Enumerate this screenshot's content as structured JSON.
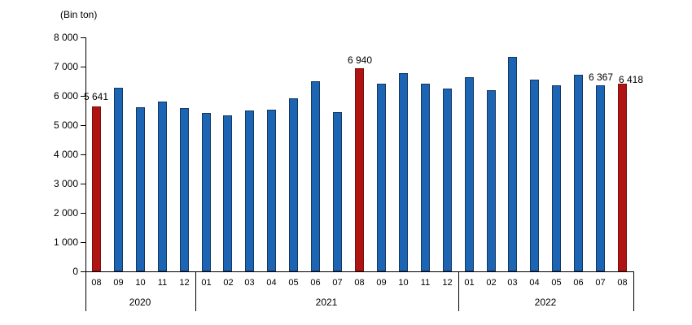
{
  "colors": {
    "bar_blue": "#1c64b4",
    "bar_blue_border": "#17375e",
    "bar_red": "#b01412",
    "bar_red_border": "#7c100e",
    "axis": "#000000",
    "text": "#000000"
  },
  "chart_data": {
    "type": "bar",
    "title": "(Bin ton)",
    "ylabel": "(Bin ton)",
    "xlabel": "",
    "ylim": [
      0,
      8000
    ],
    "ytick_step": 1000,
    "ytick_labels": [
      "0",
      "1 000",
      "2 000",
      "3 000",
      "4 000",
      "5 000",
      "6 000",
      "7 000",
      "8 000"
    ],
    "grid": false,
    "legend": "none",
    "groups": [
      {
        "year": "2020",
        "count": 5
      },
      {
        "year": "2021",
        "count": 12
      },
      {
        "year": "2022",
        "count": 8
      }
    ],
    "categories": [
      "08",
      "09",
      "10",
      "11",
      "12",
      "01",
      "02",
      "03",
      "04",
      "05",
      "06",
      "07",
      "08",
      "09",
      "10",
      "11",
      "12",
      "01",
      "02",
      "03",
      "04",
      "05",
      "06",
      "07",
      "08"
    ],
    "values": [
      5641,
      6290,
      5610,
      5810,
      5575,
      5410,
      5330,
      5500,
      5520,
      5920,
      6490,
      5450,
      6940,
      6420,
      6780,
      6430,
      6260,
      6630,
      6200,
      7320,
      6550,
      6360,
      6710,
      6367,
      6418
    ],
    "highlighted_indices": [
      0,
      12,
      24
    ],
    "value_labels": [
      {
        "index": 0,
        "text": "5 641",
        "dx": 0,
        "dy": -2
      },
      {
        "index": 12,
        "text": "6 940",
        "dx": 0,
        "dy": 0
      },
      {
        "index": 23,
        "text": "6 367",
        "dx": 0,
        "dy": 0
      },
      {
        "index": 24,
        "text": "6 418",
        "dx": 10,
        "dy": 5
      }
    ]
  }
}
